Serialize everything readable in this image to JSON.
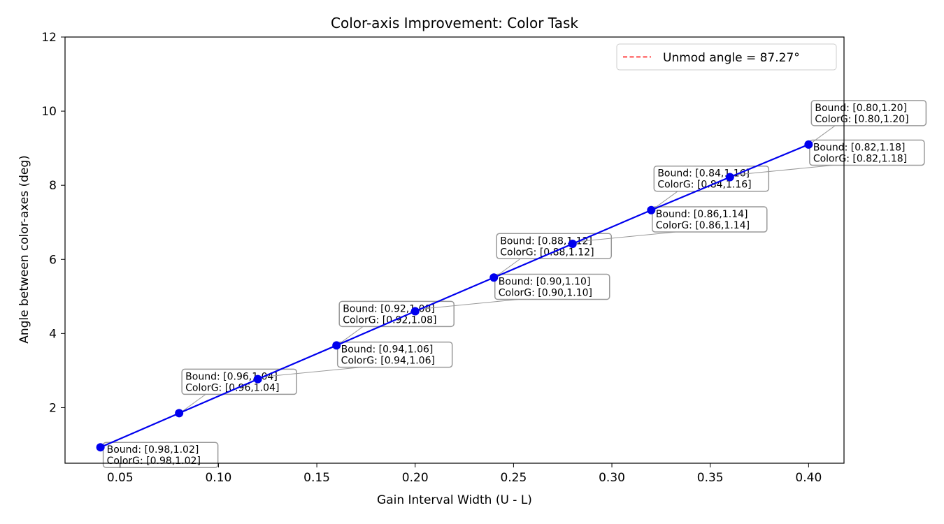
{
  "chart_data": {
    "type": "line",
    "title": "Color-axis Improvement: Color Task",
    "xlabel": "Gain Interval Width (U - L)",
    "ylabel": "Angle between color-axes (deg)",
    "xlim": [
      0.022,
      0.418
    ],
    "ylim": [
      0.5,
      12
    ],
    "xticks": [
      0.05,
      0.1,
      0.15,
      0.2,
      0.25,
      0.3,
      0.35,
      0.4
    ],
    "xtick_labels": [
      "0.05",
      "0.10",
      "0.15",
      "0.20",
      "0.25",
      "0.30",
      "0.35",
      "0.40"
    ],
    "yticks": [
      2,
      4,
      6,
      8,
      10,
      12
    ],
    "ytick_labels": [
      "2",
      "4",
      "6",
      "8",
      "10",
      "12"
    ],
    "grid": false,
    "legend": {
      "placement": "top-right",
      "entries": [
        {
          "label": "Unmod angle = 87.27°",
          "color": "#ff0000",
          "style": "dashed"
        }
      ]
    },
    "series": [
      {
        "color": "#0000ee",
        "x": [
          0.04,
          0.08,
          0.12,
          0.16,
          0.2,
          0.24,
          0.28,
          0.32,
          0.36,
          0.4
        ],
        "y": [
          0.93,
          1.85,
          2.77,
          3.68,
          4.6,
          5.51,
          6.42,
          7.33,
          8.22,
          9.1
        ]
      }
    ],
    "annotations": [
      {
        "line1": "Bound: [0.98,1.02]",
        "line2": "ColorG: [0.98,1.02]"
      },
      {
        "line1": "Bound: [0.96,1.04]",
        "line2": "ColorG: [0.96,1.04]"
      },
      {
        "line1": "Bound: [0.94,1.06]",
        "line2": "ColorG: [0.94,1.06]"
      },
      {
        "line1": "Bound: [0.92,1.08]",
        "line2": "ColorG: [0.92,1.08]"
      },
      {
        "line1": "Bound: [0.90,1.10]",
        "line2": "ColorG: [0.90,1.10]"
      },
      {
        "line1": "Bound: [0.88,1.12]",
        "line2": "ColorG: [0.88,1.12]"
      },
      {
        "line1": "Bound: [0.86,1.14]",
        "line2": "ColorG: [0.86,1.14]"
      },
      {
        "line1": "Bound: [0.84,1.16]",
        "line2": "ColorG: [0.84,1.16]"
      },
      {
        "line1": "Bound: [0.82,1.18]",
        "line2": "ColorG: [0.82,1.18]"
      },
      {
        "line1": "Bound: [0.80,1.20]",
        "line2": "ColorG: [0.80,1.20]"
      }
    ]
  }
}
